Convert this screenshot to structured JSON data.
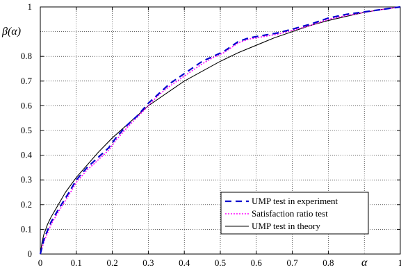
{
  "chart_data": {
    "type": "line",
    "title": "",
    "xlabel": "α",
    "ylabel": "β(α)",
    "xlim": [
      0,
      1
    ],
    "ylim": [
      0,
      1
    ],
    "x_ticks": [
      0,
      0.1,
      0.2,
      0.3,
      0.4,
      0.5,
      0.6,
      0.7,
      0.8,
      1
    ],
    "x_tick_labels": [
      "0",
      "0.1",
      "0.2",
      "0.3",
      "0.4",
      "0.5",
      "0.6",
      "0.7",
      "0.8",
      "1"
    ],
    "y_ticks": [
      0,
      0.1,
      0.2,
      0.3,
      0.4,
      0.5,
      0.6,
      0.7,
      0.8,
      1
    ],
    "y_tick_labels": [
      "0",
      "0.1",
      "0.2",
      "0.3",
      "0.4",
      "0.5",
      "0.6",
      "0.7",
      "0.8",
      "1"
    ],
    "grid": true,
    "legend_position": "bottom-right",
    "series": [
      {
        "name": "UMP test in experiment",
        "color": "#0000cc",
        "style": "dashed",
        "x": [
          0,
          0.01,
          0.03,
          0.05,
          0.08,
          0.1,
          0.13,
          0.16,
          0.19,
          0.21,
          0.24,
          0.27,
          0.3,
          0.33,
          0.36,
          0.39,
          0.42,
          0.45,
          0.48,
          0.51,
          0.53,
          0.55,
          0.58,
          0.62,
          0.66,
          0.7,
          0.75,
          0.8,
          0.85,
          0.9,
          0.95,
          1
        ],
        "y": [
          0,
          0.06,
          0.13,
          0.18,
          0.25,
          0.3,
          0.35,
          0.39,
          0.43,
          0.47,
          0.52,
          0.56,
          0.61,
          0.65,
          0.69,
          0.72,
          0.75,
          0.78,
          0.8,
          0.82,
          0.84,
          0.86,
          0.875,
          0.885,
          0.895,
          0.91,
          0.93,
          0.955,
          0.97,
          0.98,
          0.99,
          1
        ]
      },
      {
        "name": "Satisfaction ratio test",
        "color": "#ff00ff",
        "style": "dotted",
        "x": [
          0,
          0.01,
          0.03,
          0.05,
          0.08,
          0.1,
          0.13,
          0.16,
          0.19,
          0.21,
          0.24,
          0.27,
          0.3,
          0.33,
          0.36,
          0.39,
          0.42,
          0.45,
          0.48,
          0.51,
          0.53,
          0.55,
          0.58,
          0.62,
          0.66,
          0.7,
          0.75,
          0.8,
          0.85,
          0.9,
          0.95,
          1
        ],
        "y": [
          0,
          0.05,
          0.12,
          0.17,
          0.24,
          0.29,
          0.34,
          0.38,
          0.42,
          0.46,
          0.51,
          0.555,
          0.6,
          0.645,
          0.68,
          0.71,
          0.74,
          0.77,
          0.795,
          0.815,
          0.835,
          0.855,
          0.87,
          0.88,
          0.89,
          0.905,
          0.925,
          0.95,
          0.965,
          0.978,
          0.99,
          1
        ]
      },
      {
        "name": "UMP test in theory",
        "color": "#000000",
        "style": "solid",
        "x": [
          0,
          0.005,
          0.01,
          0.02,
          0.03,
          0.05,
          0.07,
          0.1,
          0.13,
          0.16,
          0.2,
          0.25,
          0.3,
          0.35,
          0.4,
          0.45,
          0.5,
          0.55,
          0.6,
          0.65,
          0.7,
          0.75,
          0.8,
          0.85,
          0.9,
          0.95,
          1
        ],
        "y": [
          0,
          0.05,
          0.08,
          0.12,
          0.15,
          0.2,
          0.25,
          0.31,
          0.36,
          0.41,
          0.47,
          0.535,
          0.6,
          0.65,
          0.7,
          0.74,
          0.78,
          0.815,
          0.845,
          0.875,
          0.9,
          0.925,
          0.945,
          0.962,
          0.978,
          0.99,
          1
        ]
      }
    ]
  }
}
